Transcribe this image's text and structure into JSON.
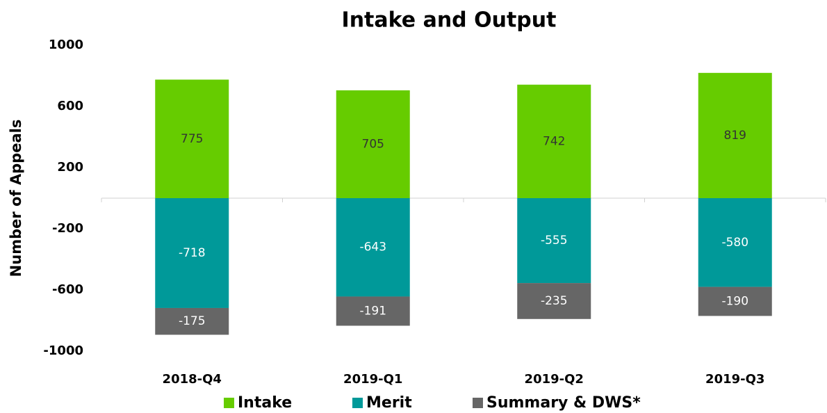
{
  "chart_data": {
    "type": "bar",
    "stacked": true,
    "title": "Intake and Output",
    "ylabel": "Number of Appeals",
    "categories": [
      "2018-Q4",
      "2019-Q1",
      "2019-Q2",
      "2019-Q3"
    ],
    "series": [
      {
        "name": "Intake",
        "color": "#66cc00",
        "values": [
          775,
          705,
          742,
          819
        ]
      },
      {
        "name": "Merit",
        "color": "#009999",
        "values": [
          -718,
          -643,
          -555,
          -580
        ]
      },
      {
        "name": "Summary & DWS*",
        "color": "#666666",
        "values": [
          -175,
          -191,
          -235,
          -190
        ]
      }
    ],
    "ylim": [
      -1000,
      1000
    ],
    "yticks": [
      1000,
      600,
      200,
      -200,
      -600,
      -1000
    ],
    "grid": false,
    "legend": "bottom"
  }
}
